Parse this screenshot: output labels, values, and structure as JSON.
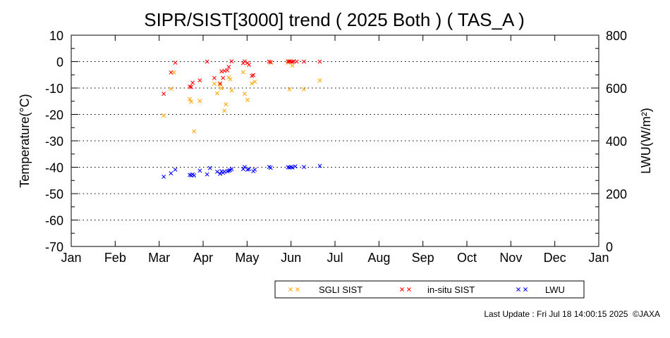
{
  "chart_data": {
    "type": "scatter",
    "title": "SIPR/SIST[3000] trend ( 2025 Both ) ( TAS_A )",
    "ylabel": "Temperature(°C)",
    "y2label": "LWU(W/m²)",
    "ylim": [
      -70,
      10
    ],
    "y2lim": [
      0,
      800
    ],
    "yticks": [
      "10",
      "0",
      "-10",
      "-20",
      "-30",
      "-40",
      "-50",
      "-60",
      "-70"
    ],
    "y2ticks": [
      "800",
      "600",
      "400",
      "200",
      "0"
    ],
    "xticks": [
      "Jan",
      "Feb",
      "Mar",
      "Apr",
      "May",
      "Jun",
      "Jul",
      "Aug",
      "Sep",
      "Oct",
      "Nov",
      "Dec",
      "Jan"
    ],
    "xlim": [
      "2025-01-01",
      "2026-01-01"
    ],
    "grid": "dotted horizontal",
    "legend_position": "bottom",
    "series": [
      {
        "name": "SGLI SIST",
        "color": "#ffa500",
        "axis": "left",
        "points": [
          [
            "2025-03-06",
            -20.4
          ],
          [
            "2025-03-11",
            -10.3
          ],
          [
            "2025-03-13",
            -4.1
          ],
          [
            "2025-03-24",
            -14.2
          ],
          [
            "2025-03-25",
            -15.2
          ],
          [
            "2025-03-27",
            -26.4
          ],
          [
            "2025-03-31",
            -14.9
          ],
          [
            "2025-04-10",
            -8.4
          ],
          [
            "2025-04-12",
            -12.0
          ],
          [
            "2025-04-14",
            -8.7
          ],
          [
            "2025-04-15",
            -10.1
          ],
          [
            "2025-04-17",
            -18.6
          ],
          [
            "2025-04-18",
            -16.2
          ],
          [
            "2025-04-20",
            -6.0
          ],
          [
            "2025-04-21",
            -6.7
          ],
          [
            "2025-04-22",
            -10.9
          ],
          [
            "2025-04-30",
            -4.0
          ],
          [
            "2025-05-01",
            -12.2
          ],
          [
            "2025-05-03",
            -14.5
          ],
          [
            "2025-05-06",
            -8.3
          ],
          [
            "2025-05-08",
            -7.6
          ],
          [
            "2025-05-19",
            -0.4
          ],
          [
            "2025-05-31",
            -0.4
          ],
          [
            "2025-06-01",
            -10.5
          ],
          [
            "2025-06-03",
            -1.5
          ],
          [
            "2025-06-11",
            -10.5
          ],
          [
            "2025-06-22",
            -7.1
          ]
        ]
      },
      {
        "name": "in-situ SIST",
        "color": "#ff0000",
        "axis": "left",
        "points": [
          [
            "2025-03-06",
            -12.2
          ],
          [
            "2025-03-11",
            -4.1
          ],
          [
            "2025-03-14",
            -0.4
          ],
          [
            "2025-03-24",
            -9.5
          ],
          [
            "2025-03-25",
            -9.6
          ],
          [
            "2025-03-26",
            -8.0
          ],
          [
            "2025-03-31",
            -7.1
          ],
          [
            "2025-04-05",
            0.0
          ],
          [
            "2025-04-10",
            -6.2
          ],
          [
            "2025-04-14",
            -8.3
          ],
          [
            "2025-04-15",
            -3.7
          ],
          [
            "2025-04-16",
            -6.2
          ],
          [
            "2025-04-17",
            -3.5
          ],
          [
            "2025-04-19",
            -3.3
          ],
          [
            "2025-04-20",
            -2.0
          ],
          [
            "2025-04-22",
            0.1
          ],
          [
            "2025-04-30",
            -0.6
          ],
          [
            "2025-05-01",
            0.1
          ],
          [
            "2025-05-03",
            -0.5
          ],
          [
            "2025-05-04",
            -1.2
          ],
          [
            "2025-05-06",
            -5.4
          ],
          [
            "2025-05-07",
            -5.1
          ],
          [
            "2025-05-18",
            0.0
          ],
          [
            "2025-05-19",
            -0.2
          ],
          [
            "2025-05-31",
            0.1
          ],
          [
            "2025-06-01",
            0.1
          ],
          [
            "2025-06-02",
            0.0
          ],
          [
            "2025-06-03",
            -0.1
          ],
          [
            "2025-06-04",
            0.1
          ],
          [
            "2025-06-06",
            0.0
          ],
          [
            "2025-06-11",
            0.0
          ],
          [
            "2025-06-22",
            0.0
          ]
        ]
      },
      {
        "name": "LWU",
        "color": "#0000ff",
        "axis": "right",
        "points": [
          [
            "2025-03-06",
            264
          ],
          [
            "2025-03-11",
            277
          ],
          [
            "2025-03-14",
            291
          ],
          [
            "2025-03-24",
            271
          ],
          [
            "2025-03-25",
            269
          ],
          [
            "2025-03-26",
            273
          ],
          [
            "2025-03-27",
            269
          ],
          [
            "2025-03-31",
            287
          ],
          [
            "2025-04-05",
            273
          ],
          [
            "2025-04-07",
            297
          ],
          [
            "2025-04-12",
            283
          ],
          [
            "2025-04-14",
            275
          ],
          [
            "2025-04-15",
            285
          ],
          [
            "2025-04-16",
            279
          ],
          [
            "2025-04-17",
            283
          ],
          [
            "2025-04-19",
            285
          ],
          [
            "2025-04-20",
            287
          ],
          [
            "2025-04-21",
            289
          ],
          [
            "2025-04-22",
            293
          ],
          [
            "2025-04-30",
            293
          ],
          [
            "2025-05-01",
            301
          ],
          [
            "2025-05-03",
            291
          ],
          [
            "2025-05-04",
            293
          ],
          [
            "2025-05-07",
            285
          ],
          [
            "2025-05-08",
            291
          ],
          [
            "2025-05-18",
            301
          ],
          [
            "2025-05-19",
            298
          ],
          [
            "2025-05-31",
            300
          ],
          [
            "2025-06-01",
            299
          ],
          [
            "2025-06-02",
            301
          ],
          [
            "2025-06-03",
            299
          ],
          [
            "2025-06-05",
            303
          ],
          [
            "2025-06-11",
            301
          ],
          [
            "2025-06-22",
            305
          ]
        ]
      }
    ]
  },
  "footer": {
    "last_update": "Last Update : Fri Jul 18 14:00:15 2025",
    "copyright": "©JAXA"
  }
}
